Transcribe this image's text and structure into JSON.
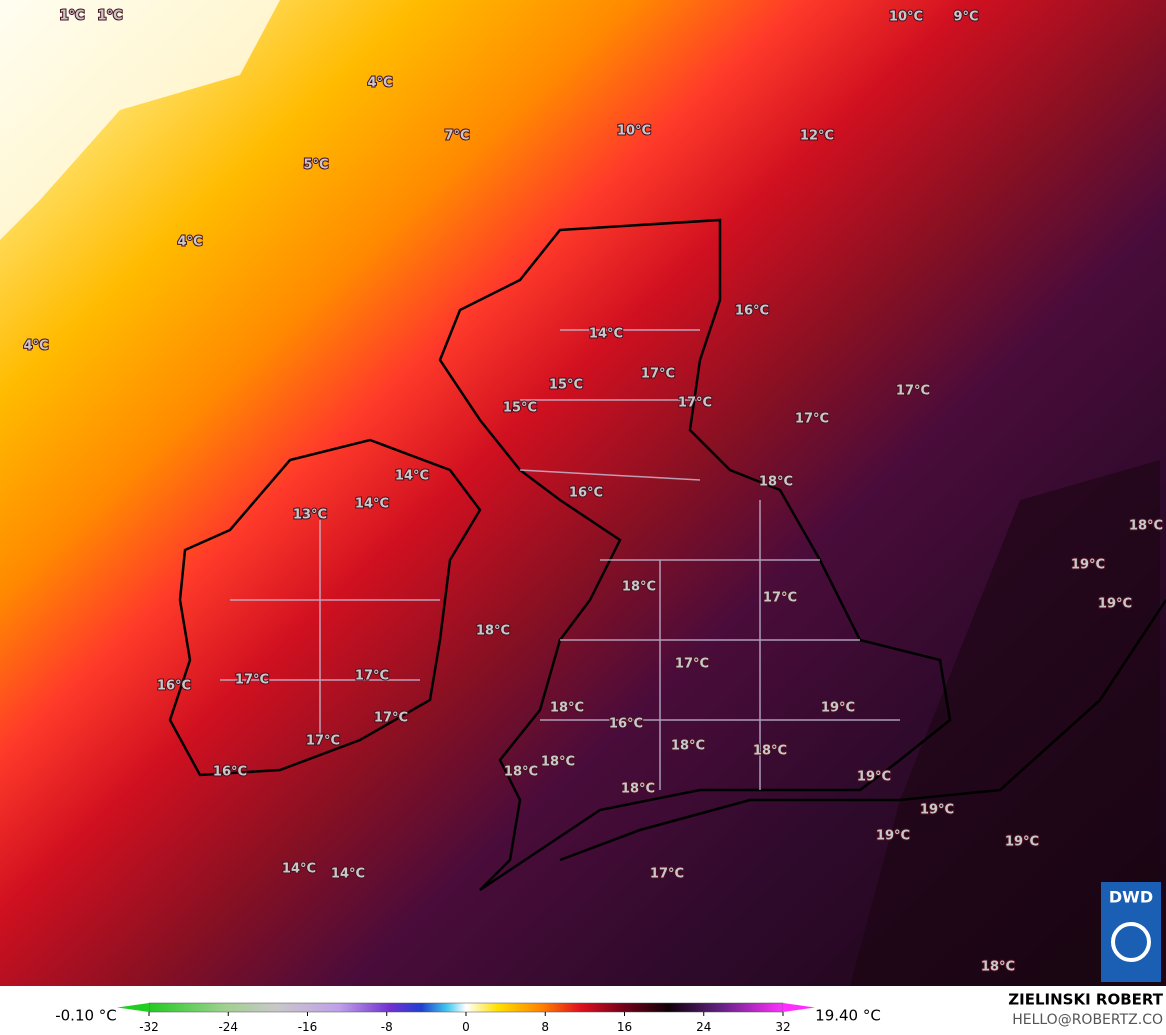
{
  "map": {
    "labels": [
      "1°C",
      "1°C",
      "10°C",
      "9°C",
      "4°C",
      "7°C",
      "10°C",
      "12°C",
      "5°C",
      "4°C",
      "4°C",
      "16°C",
      "14°C",
      "17°C",
      "15°C",
      "17°C",
      "15°C",
      "17°C",
      "17°C",
      "14°C",
      "14°C",
      "13°C",
      "16°C",
      "18°C",
      "18°C",
      "19°C",
      "19°C",
      "18°C",
      "17°C",
      "18°C",
      "17°C",
      "16°C",
      "17°C",
      "17°C",
      "17°C",
      "19°C",
      "18°C",
      "16°C",
      "17°C",
      "18°C",
      "18°C",
      "16°C",
      "18°C",
      "18°C",
      "19°C",
      "18°C",
      "19°C",
      "19°C",
      "19°C",
      "14°C",
      "14°C",
      "17°C",
      "18°C"
    ]
  },
  "legend": {
    "min_label": "-0.10 °C",
    "max_label": "19.40 °C",
    "ticks": [
      -32,
      -24,
      -16,
      -8,
      0,
      8,
      16,
      24,
      32
    ]
  },
  "credit": {
    "name": "ZIELINSKI ROBERT",
    "contact": "HELLO@ROBERTZ.CO"
  },
  "logo": "DWD"
}
